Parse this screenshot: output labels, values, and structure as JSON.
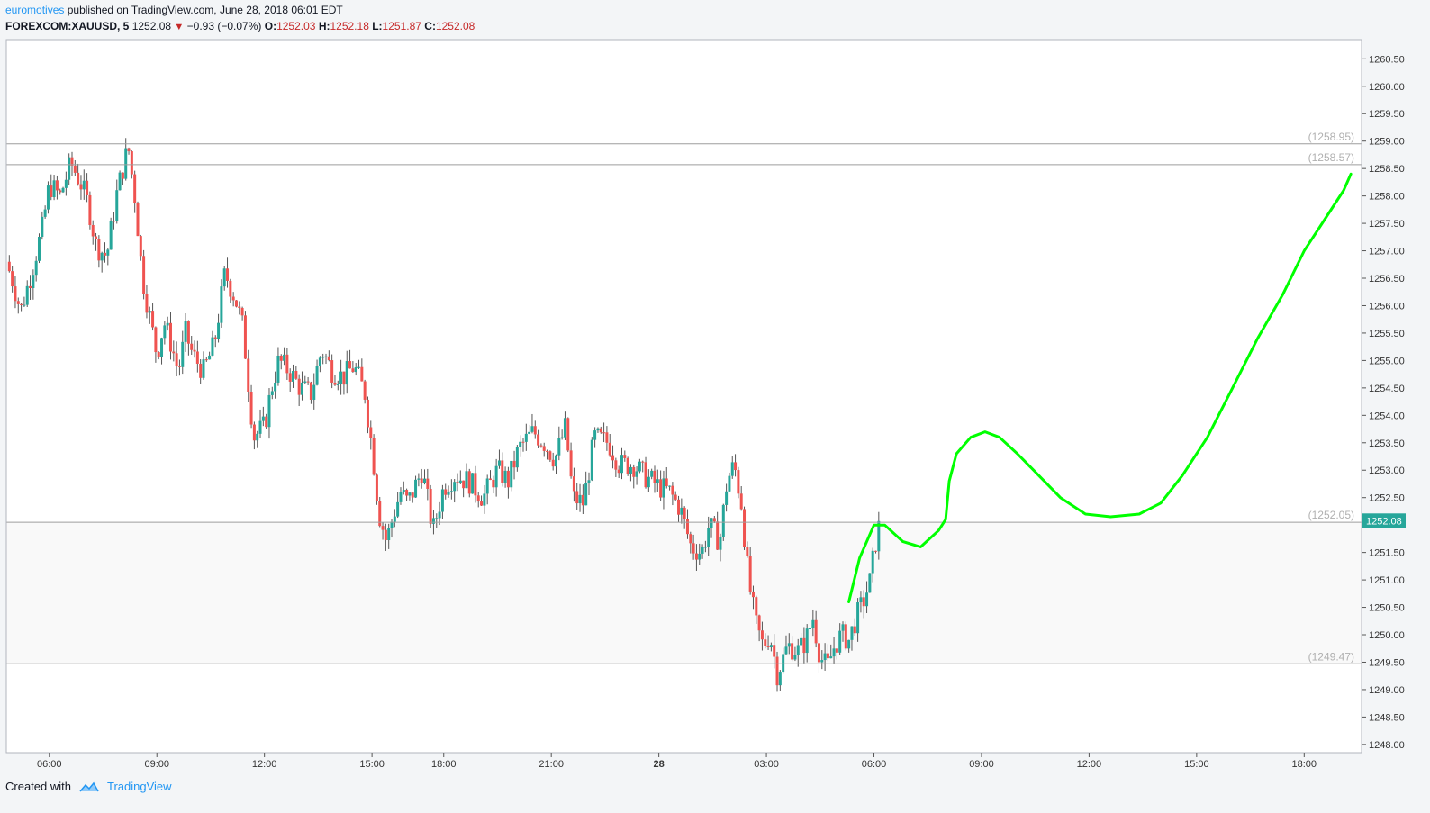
{
  "header": {
    "author": "euromotives",
    "published_text": "published on TradingView.com, June 28, 2018 06:01 EDT",
    "symbol": "FOREXCOM:XAUUSD, 5",
    "last": "1252.08",
    "change": "−0.93 (−0.07%)",
    "o_label": "O:",
    "o_val": "1252.03",
    "h_label": "H:",
    "h_val": "1252.18",
    "l_label": "L:",
    "l_val": "1251.87",
    "c_label": "C:",
    "c_val": "1252.08"
  },
  "footer": {
    "created": "Created with",
    "brand": "TradingView"
  },
  "colors": {
    "up": "#26a69a",
    "down": "#ef5350",
    "forecast": "#00ff00",
    "level_line": "#9e9e9e",
    "price_tag": "#26a69a",
    "zone": "#f9f9f9"
  },
  "chart_data": {
    "type": "candlestick",
    "ylim": [
      1247.85,
      1260.85
    ],
    "y_ticks": [
      "1260.50",
      "1260.00",
      "1259.50",
      "1259.00",
      "1258.50",
      "1258.00",
      "1257.50",
      "1257.00",
      "1256.50",
      "1256.00",
      "1255.50",
      "1255.00",
      "1254.50",
      "1254.00",
      "1253.50",
      "1253.00",
      "1252.50",
      "1252.00",
      "1251.50",
      "1251.00",
      "1250.50",
      "1250.00",
      "1249.50",
      "1249.00",
      "1248.50",
      "1248.00"
    ],
    "x_ticks": [
      {
        "label": "06:00",
        "t": 0
      },
      {
        "label": "09:00",
        "t": 3
      },
      {
        "label": "12:00",
        "t": 6
      },
      {
        "label": "15:00",
        "t": 9
      },
      {
        "label": "18:00",
        "t": 11
      },
      {
        "label": "21:00",
        "t": 14
      },
      {
        "label": "28",
        "t": 17,
        "bold": true
      },
      {
        "label": "03:00",
        "t": 20
      },
      {
        "label": "06:00",
        "t": 23
      },
      {
        "label": "09:00",
        "t": 26
      },
      {
        "label": "12:00",
        "t": 29
      },
      {
        "label": "15:00",
        "t": 32
      },
      {
        "label": "18:00",
        "t": 35
      }
    ],
    "xlim_hours": [
      -1.2,
      36.6
    ],
    "last_price": "1252.08",
    "levels": [
      {
        "value": 1258.95,
        "label": "(1258.95)"
      },
      {
        "value": 1258.57,
        "label": "(1258.57)"
      },
      {
        "value": 1252.05,
        "label": "(1252.05)"
      },
      {
        "value": 1249.47,
        "label": "(1249.47)"
      }
    ],
    "zone": [
      1249.47,
      1252.05
    ],
    "price_path": [
      [
        -1.2,
        1256.8
      ],
      [
        -1.0,
        1256.4
      ],
      [
        -0.8,
        1255.9
      ],
      [
        -0.5,
        1256.6
      ],
      [
        -0.2,
        1257.4
      ],
      [
        0.0,
        1258.2
      ],
      [
        0.3,
        1258.0
      ],
      [
        0.6,
        1258.6
      ],
      [
        0.9,
        1258.2
      ],
      [
        1.1,
        1257.8
      ],
      [
        1.3,
        1257.1
      ],
      [
        1.6,
        1256.9
      ],
      [
        1.9,
        1258.1
      ],
      [
        2.2,
        1258.9
      ],
      [
        2.4,
        1257.9
      ],
      [
        2.6,
        1256.5
      ],
      [
        2.8,
        1255.8
      ],
      [
        3.0,
        1255.1
      ],
      [
        3.2,
        1255.7
      ],
      [
        3.4,
        1255.3
      ],
      [
        3.6,
        1254.8
      ],
      [
        3.8,
        1255.5
      ],
      [
        4.0,
        1255.1
      ],
      [
        4.3,
        1254.8
      ],
      [
        4.6,
        1255.3
      ],
      [
        4.9,
        1256.6
      ],
      [
        5.2,
        1256.1
      ],
      [
        5.4,
        1255.6
      ],
      [
        5.7,
        1253.6
      ],
      [
        6.0,
        1253.8
      ],
      [
        6.2,
        1254.5
      ],
      [
        6.4,
        1255.0
      ],
      [
        6.7,
        1254.8
      ],
      [
        7.0,
        1254.5
      ],
      [
        7.3,
        1254.4
      ],
      [
        7.6,
        1255.2
      ],
      [
        7.9,
        1254.8
      ],
      [
        8.2,
        1254.7
      ],
      [
        8.5,
        1254.9
      ],
      [
        8.8,
        1254.4
      ],
      [
        9.0,
        1253.4
      ],
      [
        9.2,
        1252.2
      ],
      [
        9.4,
        1251.7
      ],
      [
        9.6,
        1252.2
      ],
      [
        9.8,
        1252.6
      ],
      [
        10.0,
        1252.4
      ],
      [
        10.4,
        1253.0
      ],
      [
        10.7,
        1251.9
      ],
      [
        11.0,
        1252.7
      ],
      [
        11.3,
        1252.9
      ],
      [
        11.7,
        1252.8
      ],
      [
        12.1,
        1252.5
      ],
      [
        12.5,
        1253.0
      ],
      [
        12.8,
        1252.8
      ],
      [
        13.1,
        1253.4
      ],
      [
        13.5,
        1253.7
      ],
      [
        13.8,
        1253.5
      ],
      [
        14.1,
        1253.2
      ],
      [
        14.4,
        1253.8
      ],
      [
        14.6,
        1252.5
      ],
      [
        14.9,
        1252.4
      ],
      [
        15.2,
        1253.6
      ],
      [
        15.6,
        1253.5
      ],
      [
        15.9,
        1253.1
      ],
      [
        16.3,
        1253.1
      ],
      [
        16.6,
        1252.9
      ],
      [
        17.0,
        1252.7
      ],
      [
        17.3,
        1252.6
      ],
      [
        17.6,
        1252.3
      ],
      [
        17.9,
        1251.6
      ],
      [
        18.2,
        1251.5
      ],
      [
        18.4,
        1252.0
      ],
      [
        18.7,
        1251.7
      ],
      [
        18.9,
        1252.8
      ],
      [
        19.1,
        1253.1
      ],
      [
        19.3,
        1252.4
      ],
      [
        19.5,
        1251.0
      ],
      [
        19.7,
        1250.2
      ],
      [
        19.9,
        1249.8
      ],
      [
        20.1,
        1250.0
      ],
      [
        20.3,
        1249.3
      ],
      [
        20.6,
        1249.8
      ],
      [
        20.9,
        1249.7
      ],
      [
        21.1,
        1249.9
      ],
      [
        21.3,
        1250.3
      ],
      [
        21.5,
        1249.6
      ],
      [
        21.7,
        1249.4
      ],
      [
        21.9,
        1249.8
      ],
      [
        22.1,
        1250.0
      ],
      [
        22.3,
        1249.9
      ],
      [
        22.5,
        1250.3
      ],
      [
        22.7,
        1250.6
      ],
      [
        22.9,
        1251.0
      ],
      [
        23.0,
        1251.5
      ],
      [
        23.1,
        1251.9
      ],
      [
        23.2,
        1252.05
      ]
    ],
    "forecast_path": [
      [
        22.3,
        1250.6
      ],
      [
        22.6,
        1251.4
      ],
      [
        23.0,
        1252.0
      ],
      [
        23.3,
        1252.0
      ],
      [
        23.8,
        1251.7
      ],
      [
        24.3,
        1251.6
      ],
      [
        24.8,
        1251.9
      ],
      [
        25.0,
        1252.1
      ],
      [
        25.1,
        1252.8
      ],
      [
        25.3,
        1253.3
      ],
      [
        25.7,
        1253.6
      ],
      [
        26.1,
        1253.7
      ],
      [
        26.5,
        1253.6
      ],
      [
        27.0,
        1253.3
      ],
      [
        27.6,
        1252.9
      ],
      [
        28.2,
        1252.5
      ],
      [
        28.9,
        1252.2
      ],
      [
        29.6,
        1252.15
      ],
      [
        30.4,
        1252.2
      ],
      [
        31.0,
        1252.4
      ],
      [
        31.6,
        1252.9
      ],
      [
        32.3,
        1253.6
      ],
      [
        33.0,
        1254.5
      ],
      [
        33.7,
        1255.4
      ],
      [
        34.4,
        1256.2
      ],
      [
        35.0,
        1257.0
      ],
      [
        35.6,
        1257.6
      ],
      [
        36.1,
        1258.1
      ],
      [
        36.3,
        1258.4
      ]
    ]
  }
}
